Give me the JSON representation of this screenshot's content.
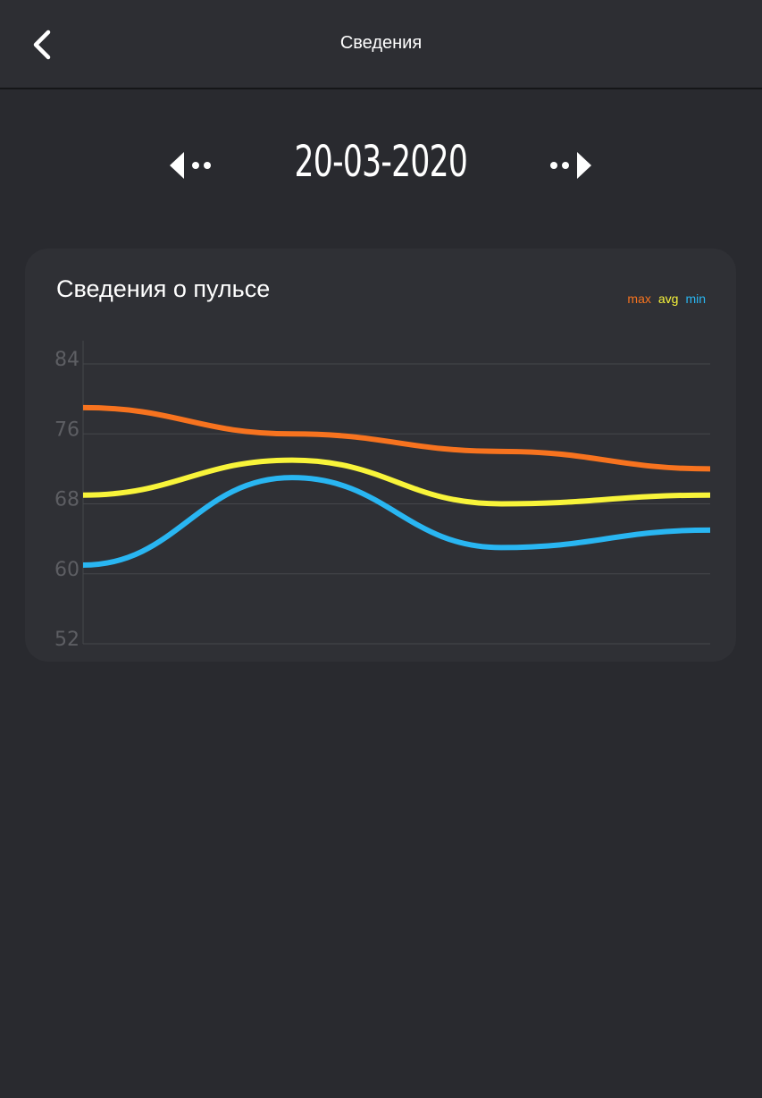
{
  "header": {
    "title": "Сведения",
    "back_icon": "chevron-left-icon"
  },
  "date_nav": {
    "date": "20-03-2020",
    "prev_icon": "prev-arrow-icon",
    "next_icon": "next-arrow-icon"
  },
  "card": {
    "title": "Сведения о пульсе"
  },
  "colors": {
    "background": "#292a2f",
    "card": "#2f3035",
    "max": "#f7731f",
    "avg": "#f8f43a",
    "min": "#29b6f2",
    "grid": "#46474c",
    "tick": "#5d5e63"
  },
  "chart_data": {
    "type": "line",
    "title": "Сведения о пульсе",
    "legend_position": "top-right",
    "grid": true,
    "ylim": [
      52,
      84
    ],
    "y_ticks": [
      "84",
      "76",
      "68",
      "60",
      "52"
    ],
    "x": [
      0,
      1,
      2,
      3
    ],
    "series": [
      {
        "name": "max",
        "values": [
          79,
          76,
          74,
          72
        ]
      },
      {
        "name": "avg",
        "values": [
          69,
          73,
          68,
          69
        ]
      },
      {
        "name": "min",
        "values": [
          61,
          71,
          63,
          65
        ]
      }
    ]
  }
}
